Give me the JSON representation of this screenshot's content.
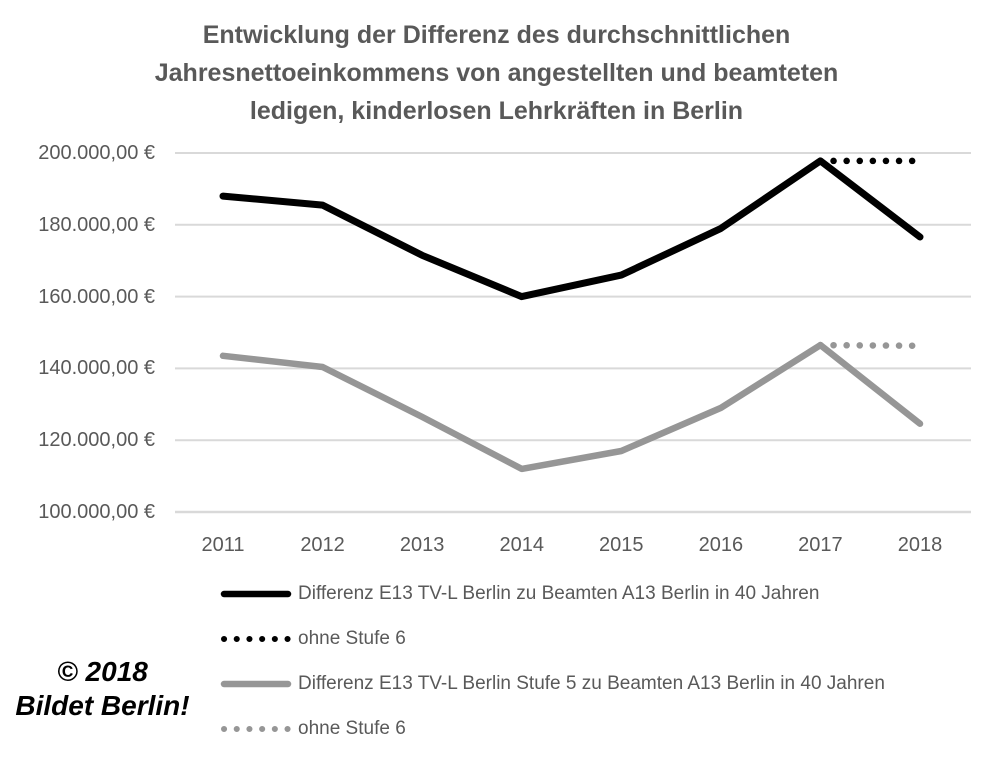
{
  "title_lines": [
    "Entwicklung der Differenz des durchschnittlichen",
    "Jahresnettoeinkommens von angestellten und beamteten",
    "ledigen, kinderlosen Lehrkräften in Berlin"
  ],
  "watermark": {
    "line1": "© 2018",
    "line2": "Bildet Berlin!"
  },
  "colors": {
    "series_black": "#000000",
    "series_gray": "#969696",
    "grid": "#d9d9d9",
    "axis_text": "#595959",
    "title_text": "#595959",
    "watermark_text": "#000000",
    "background": "#ffffff"
  },
  "chart_data": {
    "type": "line",
    "title": "Entwicklung der Differenz des durchschnittlichen Jahresnettoeinkommens von angestellten und beamteten ledigen, kinderlosen Lehrkräften in Berlin",
    "xlabel": "",
    "ylabel": "",
    "grid": true,
    "legend_position": "bottom-left",
    "ylim": [
      100000,
      200000
    ],
    "y_tick_step": 20000,
    "categories": [
      "2011",
      "2012",
      "2013",
      "2014",
      "2015",
      "2016",
      "2017",
      "2018"
    ],
    "y_ticks": [
      {
        "value": 200000,
        "label": "200.000,00 €"
      },
      {
        "value": 180000,
        "label": "180.000,00 €"
      },
      {
        "value": 160000,
        "label": "160.000,00 €"
      },
      {
        "value": 140000,
        "label": "140.000,00 €"
      },
      {
        "value": 120000,
        "label": "120.000,00 €"
      },
      {
        "value": 100000,
        "label": "100.000,00 €"
      }
    ],
    "series": [
      {
        "name": "Differenz E13 TV-L Berlin zu Beamten A13 Berlin in 40 Jahren",
        "color": "#000000",
        "style": "solid",
        "values": [
          188000,
          185500,
          171500,
          160000,
          166000,
          179000,
          197800,
          176600
        ]
      },
      {
        "name": "ohne Stufe 6",
        "color": "#000000",
        "style": "dotted",
        "values": [
          null,
          null,
          null,
          null,
          null,
          null,
          197800,
          197800
        ]
      },
      {
        "name": "Differenz E13 TV-L Berlin Stufe 5 zu Beamten A13 Berlin in 40 Jahren",
        "color": "#969696",
        "style": "solid",
        "values": [
          143500,
          140400,
          126500,
          112000,
          117000,
          129000,
          146500,
          124600
        ]
      },
      {
        "name": "ohne Stufe 6",
        "color": "#969696",
        "style": "dotted",
        "values": [
          null,
          null,
          null,
          null,
          null,
          null,
          146500,
          146300
        ]
      }
    ]
  }
}
